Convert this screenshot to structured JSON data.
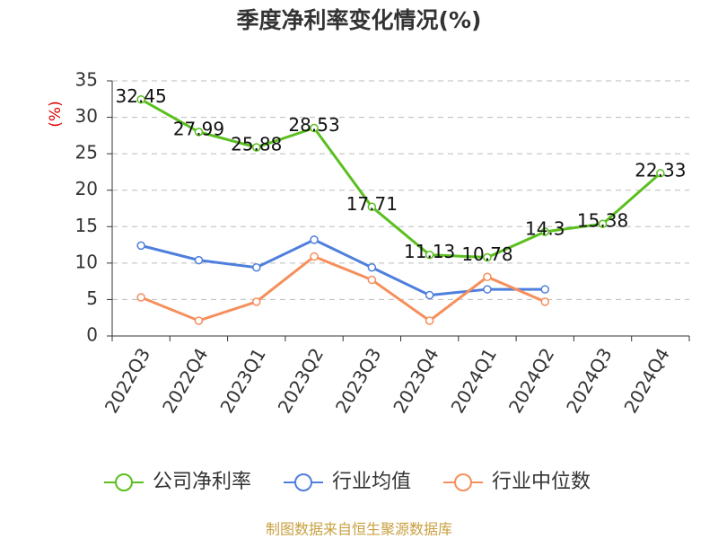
{
  "chart_data": {
    "type": "line",
    "title": "季度净利率变化情况(%)",
    "y_label": "(%)",
    "categories": [
      "2022Q3",
      "2022Q4",
      "2023Q1",
      "2023Q2",
      "2023Q3",
      "2023Q4",
      "2024Q1",
      "2024Q2",
      "2024Q3",
      "2024Q4"
    ],
    "series": [
      {
        "name": "公司净利率",
        "color": "#5bbf1f",
        "data_labels": true,
        "values": [
          32.45,
          27.99,
          25.88,
          28.53,
          17.71,
          11.13,
          10.78,
          14.3,
          15.38,
          22.33
        ]
      },
      {
        "name": "行业均值",
        "color": "#4f7fdc",
        "data_labels": false,
        "values": [
          12.4,
          10.4,
          9.4,
          13.2,
          9.4,
          5.6,
          6.4,
          6.4,
          null,
          null
        ]
      },
      {
        "name": "行业中位数",
        "color": "#f58f5c",
        "data_labels": false,
        "values": [
          5.3,
          2.1,
          4.7,
          10.9,
          7.7,
          2.1,
          8.1,
          4.7,
          null,
          null
        ]
      }
    ],
    "ylim": [
      0,
      35
    ],
    "yticks": [
      0,
      5,
      10,
      15,
      20,
      25,
      30,
      35
    ],
    "grid": true,
    "source": "制图数据来自恒生聚源数据库"
  }
}
